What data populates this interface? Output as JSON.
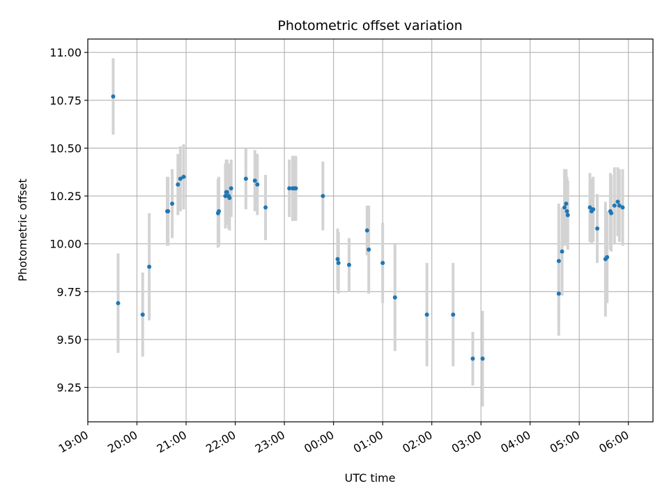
{
  "chart_data": {
    "type": "scatter",
    "title": "Photometric offset variation",
    "xlabel": "UTC time",
    "ylabel": "Photometric offset",
    "grid": true,
    "x_unit": "UTC time (hh:mm); times after 24:00 continue into the next day",
    "xlim": [
      "19:00",
      "06:30"
    ],
    "ylim": [
      9.07,
      11.07
    ],
    "x_tick_labels": [
      "19:00",
      "20:00",
      "21:00",
      "22:00",
      "23:00",
      "00:00",
      "01:00",
      "02:00",
      "03:00",
      "04:00",
      "05:00",
      "06:00"
    ],
    "y_tick_labels": [
      "9.25",
      "9.50",
      "9.75",
      "10.00",
      "10.25",
      "10.50",
      "10.75",
      "11.00"
    ],
    "colors": {
      "point": "#1f77b4",
      "errorbar": "#d3d3d3",
      "grid": "#b0b0b0"
    },
    "series": [
      {
        "x": [
          "19:31",
          "19:37",
          "20:07",
          "20:15",
          "20:37",
          "20:38",
          "20:43",
          "20:50",
          "20:53",
          "20:57",
          "21:39",
          "21:40",
          "21:48",
          "21:49",
          "21:50",
          "21:52",
          "21:53",
          "21:55",
          "22:13",
          "22:24",
          "22:27",
          "22:37",
          "23:06",
          "23:10",
          "23:12",
          "23:14",
          "23:47",
          "00:05",
          "00:06",
          "00:19",
          "00:41",
          "00:43",
          "01:00",
          "01:15",
          "01:54",
          "02:26",
          "02:50",
          "03:02",
          "04:35",
          "04:35",
          "04:39",
          "04:42",
          "04:44",
          "04:45",
          "04:46",
          "05:13",
          "05:15",
          "05:17",
          "05:22",
          "05:32",
          "05:34",
          "05:38",
          "05:39",
          "05:43",
          "05:47",
          "05:49",
          "05:53"
        ],
        "y": [
          10.77,
          9.69,
          9.63,
          9.88,
          10.17,
          10.17,
          10.21,
          10.31,
          10.34,
          10.35,
          10.16,
          10.17,
          10.25,
          10.27,
          10.27,
          10.25,
          10.24,
          10.29,
          10.34,
          10.33,
          10.31,
          10.19,
          10.29,
          10.29,
          10.29,
          10.29,
          10.25,
          9.92,
          9.9,
          9.89,
          10.07,
          9.97,
          9.9,
          9.72,
          9.63,
          9.63,
          9.4,
          9.4,
          9.74,
          9.91,
          9.96,
          10.19,
          10.21,
          10.17,
          10.15,
          10.19,
          10.17,
          10.18,
          10.08,
          9.92,
          9.93,
          10.17,
          10.16,
          10.2,
          10.22,
          10.2,
          10.19
        ],
        "yerr": [
          0.2,
          0.26,
          0.22,
          0.28,
          0.18,
          0.18,
          0.18,
          0.16,
          0.17,
          0.17,
          0.18,
          0.18,
          0.17,
          0.17,
          0.17,
          0.17,
          0.17,
          0.15,
          0.16,
          0.16,
          0.16,
          0.17,
          0.15,
          0.17,
          0.17,
          0.17,
          0.18,
          0.16,
          0.16,
          0.14,
          0.13,
          0.23,
          0.21,
          0.28,
          0.27,
          0.27,
          0.14,
          0.25,
          0.22,
          0.3,
          0.23,
          0.2,
          0.18,
          0.18,
          0.18,
          0.18,
          0.17,
          0.17,
          0.18,
          0.3,
          0.24,
          0.2,
          0.2,
          0.2,
          0.18,
          0.19,
          0.2
        ]
      }
    ]
  }
}
